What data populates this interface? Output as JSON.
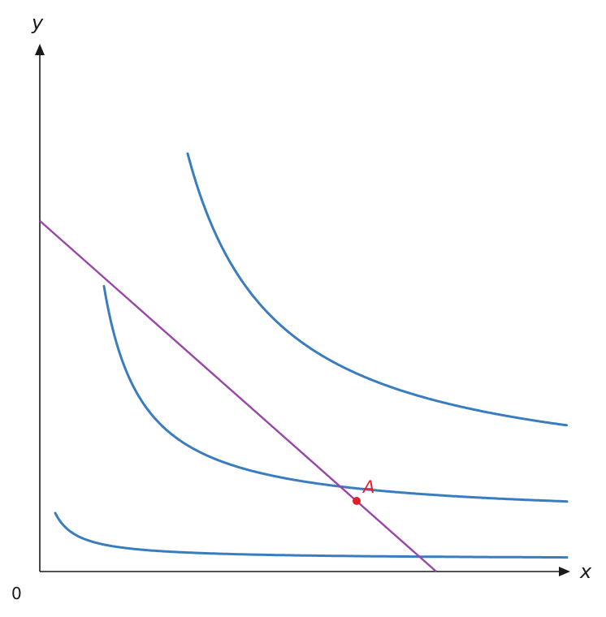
{
  "axes": {
    "x_label": "x",
    "y_label": "y",
    "origin_label": "0"
  },
  "colors": {
    "axis": "#1a1a1a",
    "indifference_curve": "#3a7dbf",
    "budget_line": "#9a45a8",
    "point": "#e0202a"
  },
  "indifference_curves": [
    {
      "level": "low"
    },
    {
      "level": "middle"
    },
    {
      "level": "high"
    }
  ],
  "budget_line": {
    "visible": true
  },
  "point": {
    "label": "A"
  }
}
